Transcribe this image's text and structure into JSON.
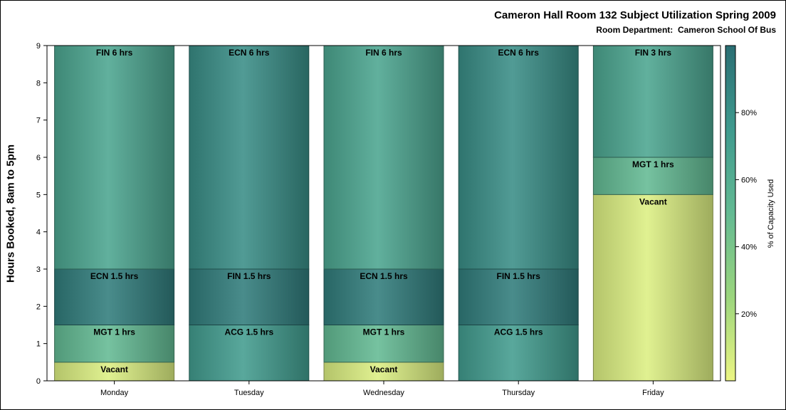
{
  "chart_data": {
    "type": "bar",
    "stacked": true,
    "title": "Cameron Hall Room 132 Subject Utilization Spring 2009",
    "subtitle": "Room Department:  Cameron School Of Bus",
    "ylabel": "Hours Booked, 8am to 5pm",
    "xlabel": "",
    "ylim": [
      0,
      9
    ],
    "yticks": [
      "0",
      "1",
      "2",
      "3",
      "4",
      "5",
      "6",
      "7",
      "8",
      "9"
    ],
    "categories": [
      "Monday",
      "Tuesday",
      "Wednesday",
      "Thursday",
      "Friday"
    ],
    "bars": [
      {
        "category": "Monday",
        "segments": [
          {
            "label": "Vacant",
            "hours": 0.5,
            "pct": 5
          },
          {
            "label": "MGT 1 hrs",
            "hours": 1,
            "pct": 50
          },
          {
            "label": "ECN 1.5 hrs",
            "hours": 1.5,
            "pct": 92
          },
          {
            "label": "FIN 6 hrs",
            "hours": 6,
            "pct": 66
          }
        ]
      },
      {
        "category": "Tuesday",
        "segments": [
          {
            "label": "ACG 1.5 hrs",
            "hours": 1.5,
            "pct": 73
          },
          {
            "label": "FIN 1.5 hrs",
            "hours": 1.5,
            "pct": 92
          },
          {
            "label": "ECN 6 hrs",
            "hours": 6,
            "pct": 82
          }
        ]
      },
      {
        "category": "Wednesday",
        "segments": [
          {
            "label": "Vacant",
            "hours": 0.5,
            "pct": 5
          },
          {
            "label": "MGT 1 hrs",
            "hours": 1,
            "pct": 50
          },
          {
            "label": "ECN 1.5 hrs",
            "hours": 1.5,
            "pct": 92
          },
          {
            "label": "FIN 6 hrs",
            "hours": 6,
            "pct": 66
          }
        ]
      },
      {
        "category": "Thursday",
        "segments": [
          {
            "label": "ACG 1.5 hrs",
            "hours": 1.5,
            "pct": 73
          },
          {
            "label": "FIN 1.5 hrs",
            "hours": 1.5,
            "pct": 92
          },
          {
            "label": "ECN 6 hrs",
            "hours": 6,
            "pct": 82
          }
        ]
      },
      {
        "category": "Friday",
        "segments": [
          {
            "label": "Vacant",
            "hours": 5,
            "pct": 5
          },
          {
            "label": "MGT 1 hrs",
            "hours": 1,
            "pct": 50
          },
          {
            "label": "FIN 3 hrs",
            "hours": 3,
            "pct": 66
          }
        ]
      }
    ],
    "colorbar": {
      "title": "% of Capacity Used",
      "ticks": [
        {
          "value": 20,
          "label": "20%"
        },
        {
          "value": 40,
          "label": "40%"
        },
        {
          "value": 60,
          "label": "60%"
        },
        {
          "value": 80,
          "label": "80%"
        }
      ],
      "range": [
        0,
        100
      ],
      "colors": [
        "#ecf583",
        "#9bd57d",
        "#63ba93",
        "#3f9a8e",
        "#2a6e73"
      ]
    },
    "grid": false,
    "legend": "right"
  }
}
